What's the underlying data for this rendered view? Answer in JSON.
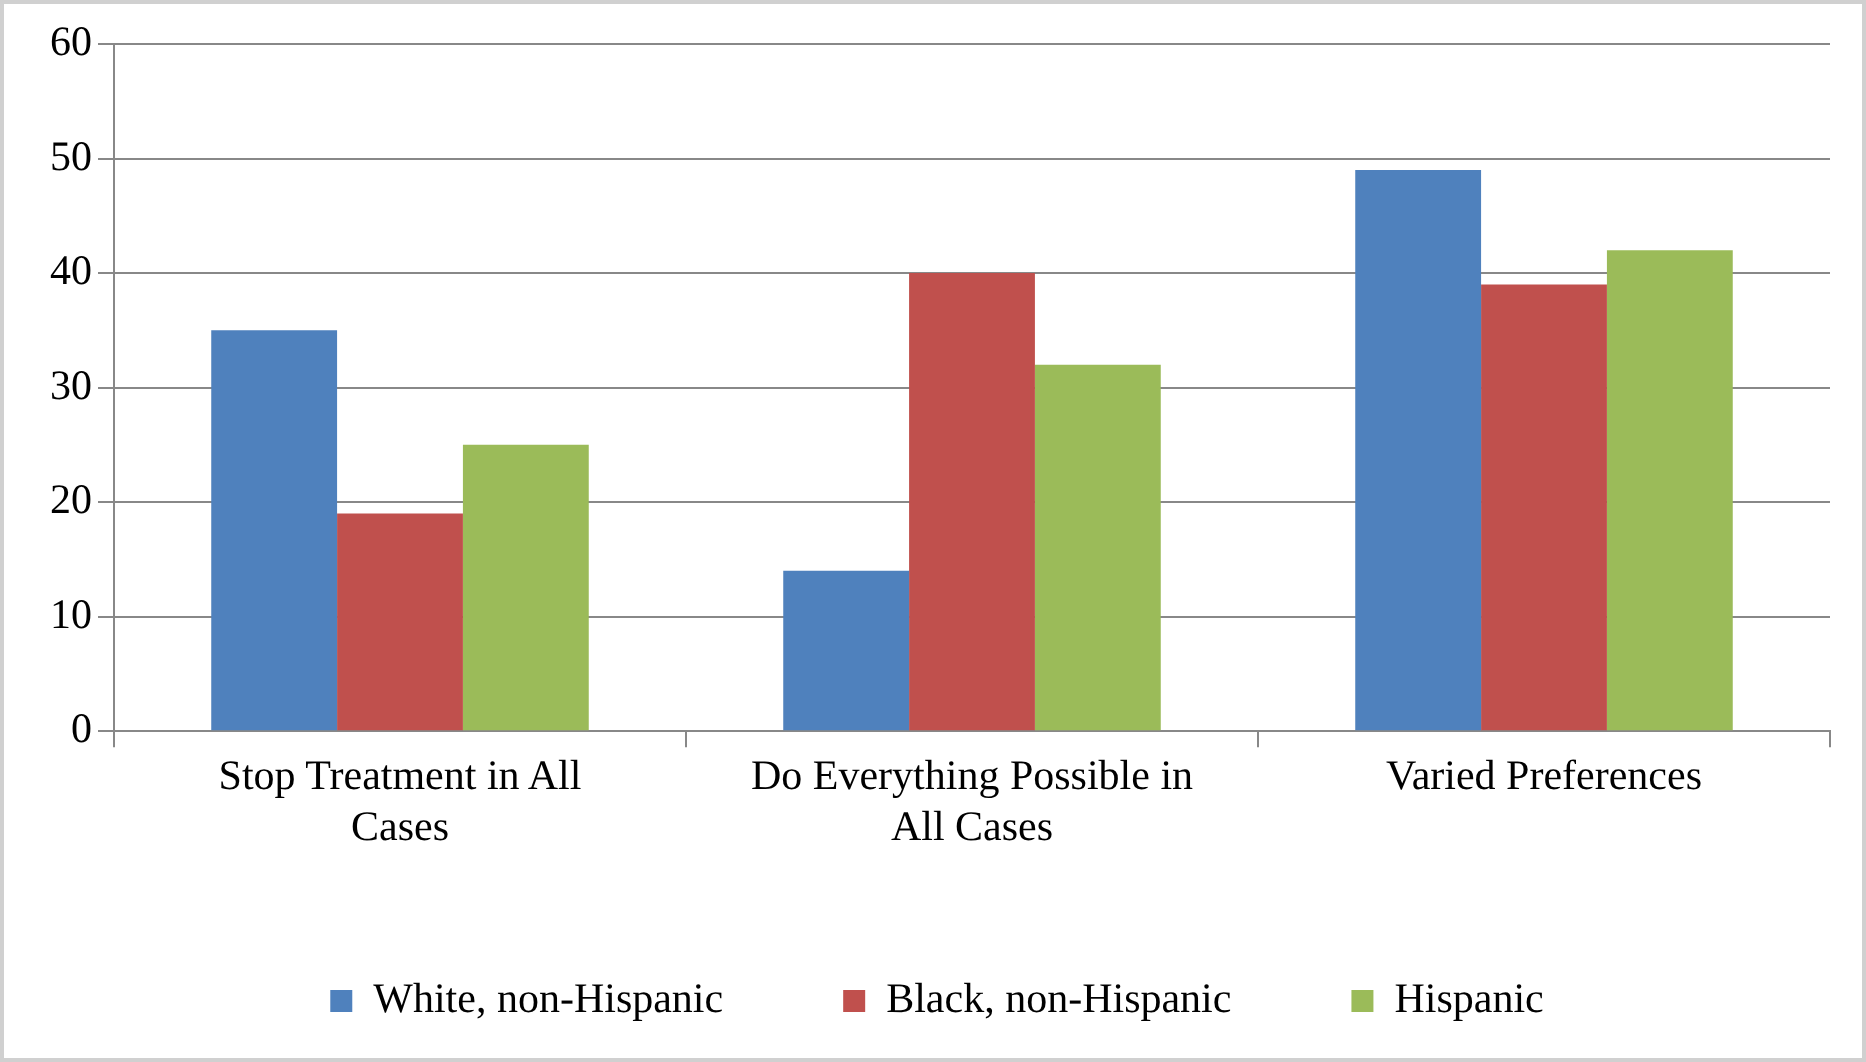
{
  "chart_data": {
    "type": "bar",
    "categories": [
      "Stop Treatment in All Cases",
      "Do Everything Possible in All Cases",
      "Varied Preferences"
    ],
    "series": [
      {
        "name": "White, non-Hispanic",
        "color": "#4f81bd",
        "values": [
          35,
          14,
          49
        ]
      },
      {
        "name": "Black, non-Hispanic",
        "color": "#c0504d",
        "values": [
          19,
          40,
          39
        ]
      },
      {
        "name": "Hispanic",
        "color": "#9bbb59",
        "values": [
          25,
          32,
          42
        ]
      }
    ],
    "ylim": [
      0,
      60
    ],
    "yticks": [
      0,
      10,
      20,
      30,
      40,
      50,
      60
    ],
    "grid": "y",
    "legend": "bottom"
  }
}
